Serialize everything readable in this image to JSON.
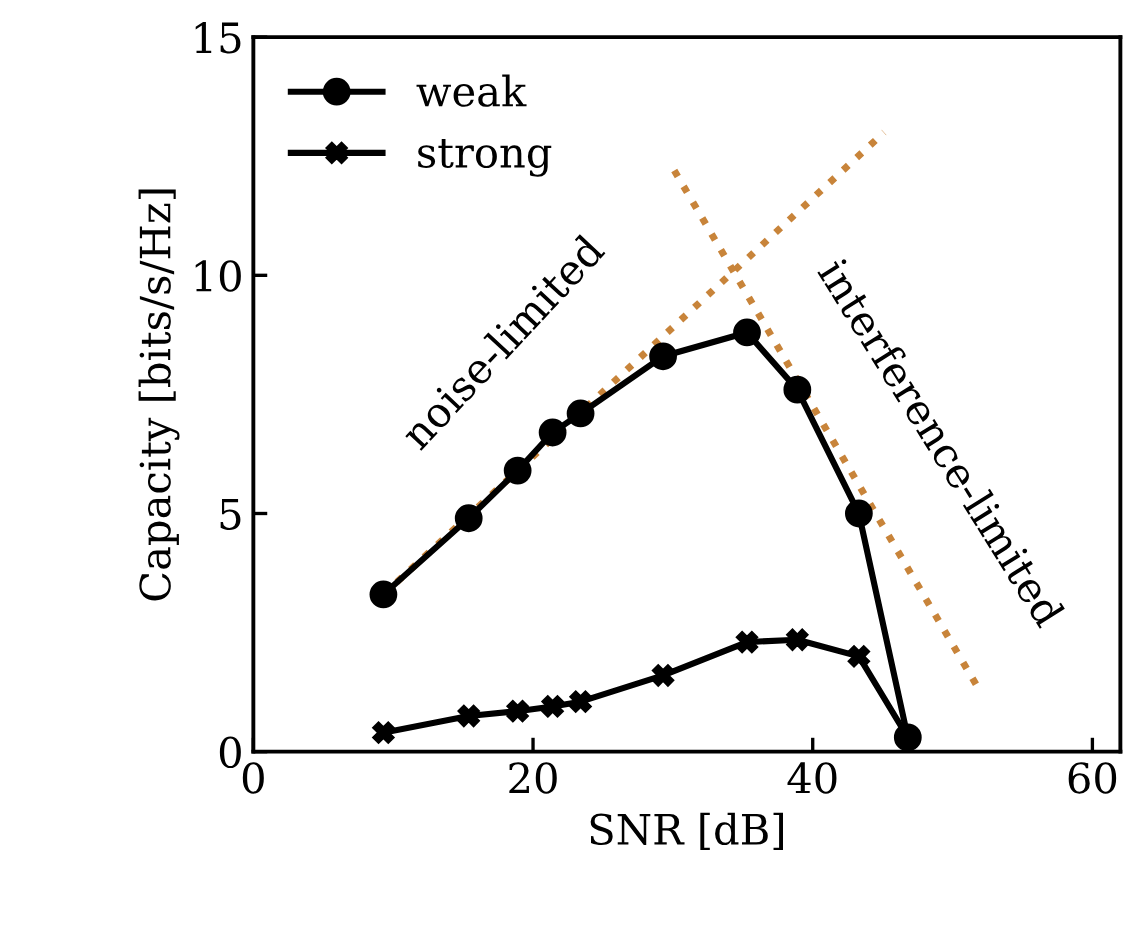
{
  "chart_data": {
    "type": "line",
    "xlabel": "SNR [dB]",
    "ylabel": "Capacity [bits/s/Hz]",
    "xlim": [
      0,
      62
    ],
    "xticks": [
      0,
      20,
      40,
      60
    ],
    "ylim": [
      0,
      15
    ],
    "yticks": [
      0,
      5,
      10,
      15
    ],
    "grid": false,
    "legend": "top left",
    "line_style": "solid",
    "series": [
      {
        "name": "weak",
        "color": "#000000",
        "marker": "circle",
        "x": [
          9.3,
          15.4,
          18.9,
          21.4,
          23.4,
          29.3,
          35.3,
          38.9,
          43.3,
          46.8
        ],
        "values": [
          3.3,
          4.9,
          5.9,
          6.7,
          7.1,
          8.3,
          8.8,
          7.6,
          5.0,
          0.3
        ]
      },
      {
        "name": "strong",
        "color": "#000000",
        "marker": "cross",
        "x": [
          9.3,
          15.4,
          18.9,
          21.4,
          23.4,
          29.3,
          35.3,
          38.9,
          43.3,
          46.8
        ],
        "values": [
          0.4,
          0.75,
          0.85,
          0.95,
          1.05,
          1.6,
          2.3,
          2.35,
          2.0,
          0.3
        ]
      },
      {
        "color": "#c8843a",
        "marker": "none",
        "line_style": "dotted",
        "x": [
          9.3,
          45.1
        ],
        "values": [
          3.3,
          13.0
        ]
      },
      {
        "color": "#c8843a",
        "marker": "none",
        "line_style": "dotted",
        "x": [
          30.1,
          51.9
        ],
        "values": [
          12.2,
          1.3
        ]
      }
    ],
    "annotations": [
      "noise-limited",
      "interference-limited"
    ]
  }
}
